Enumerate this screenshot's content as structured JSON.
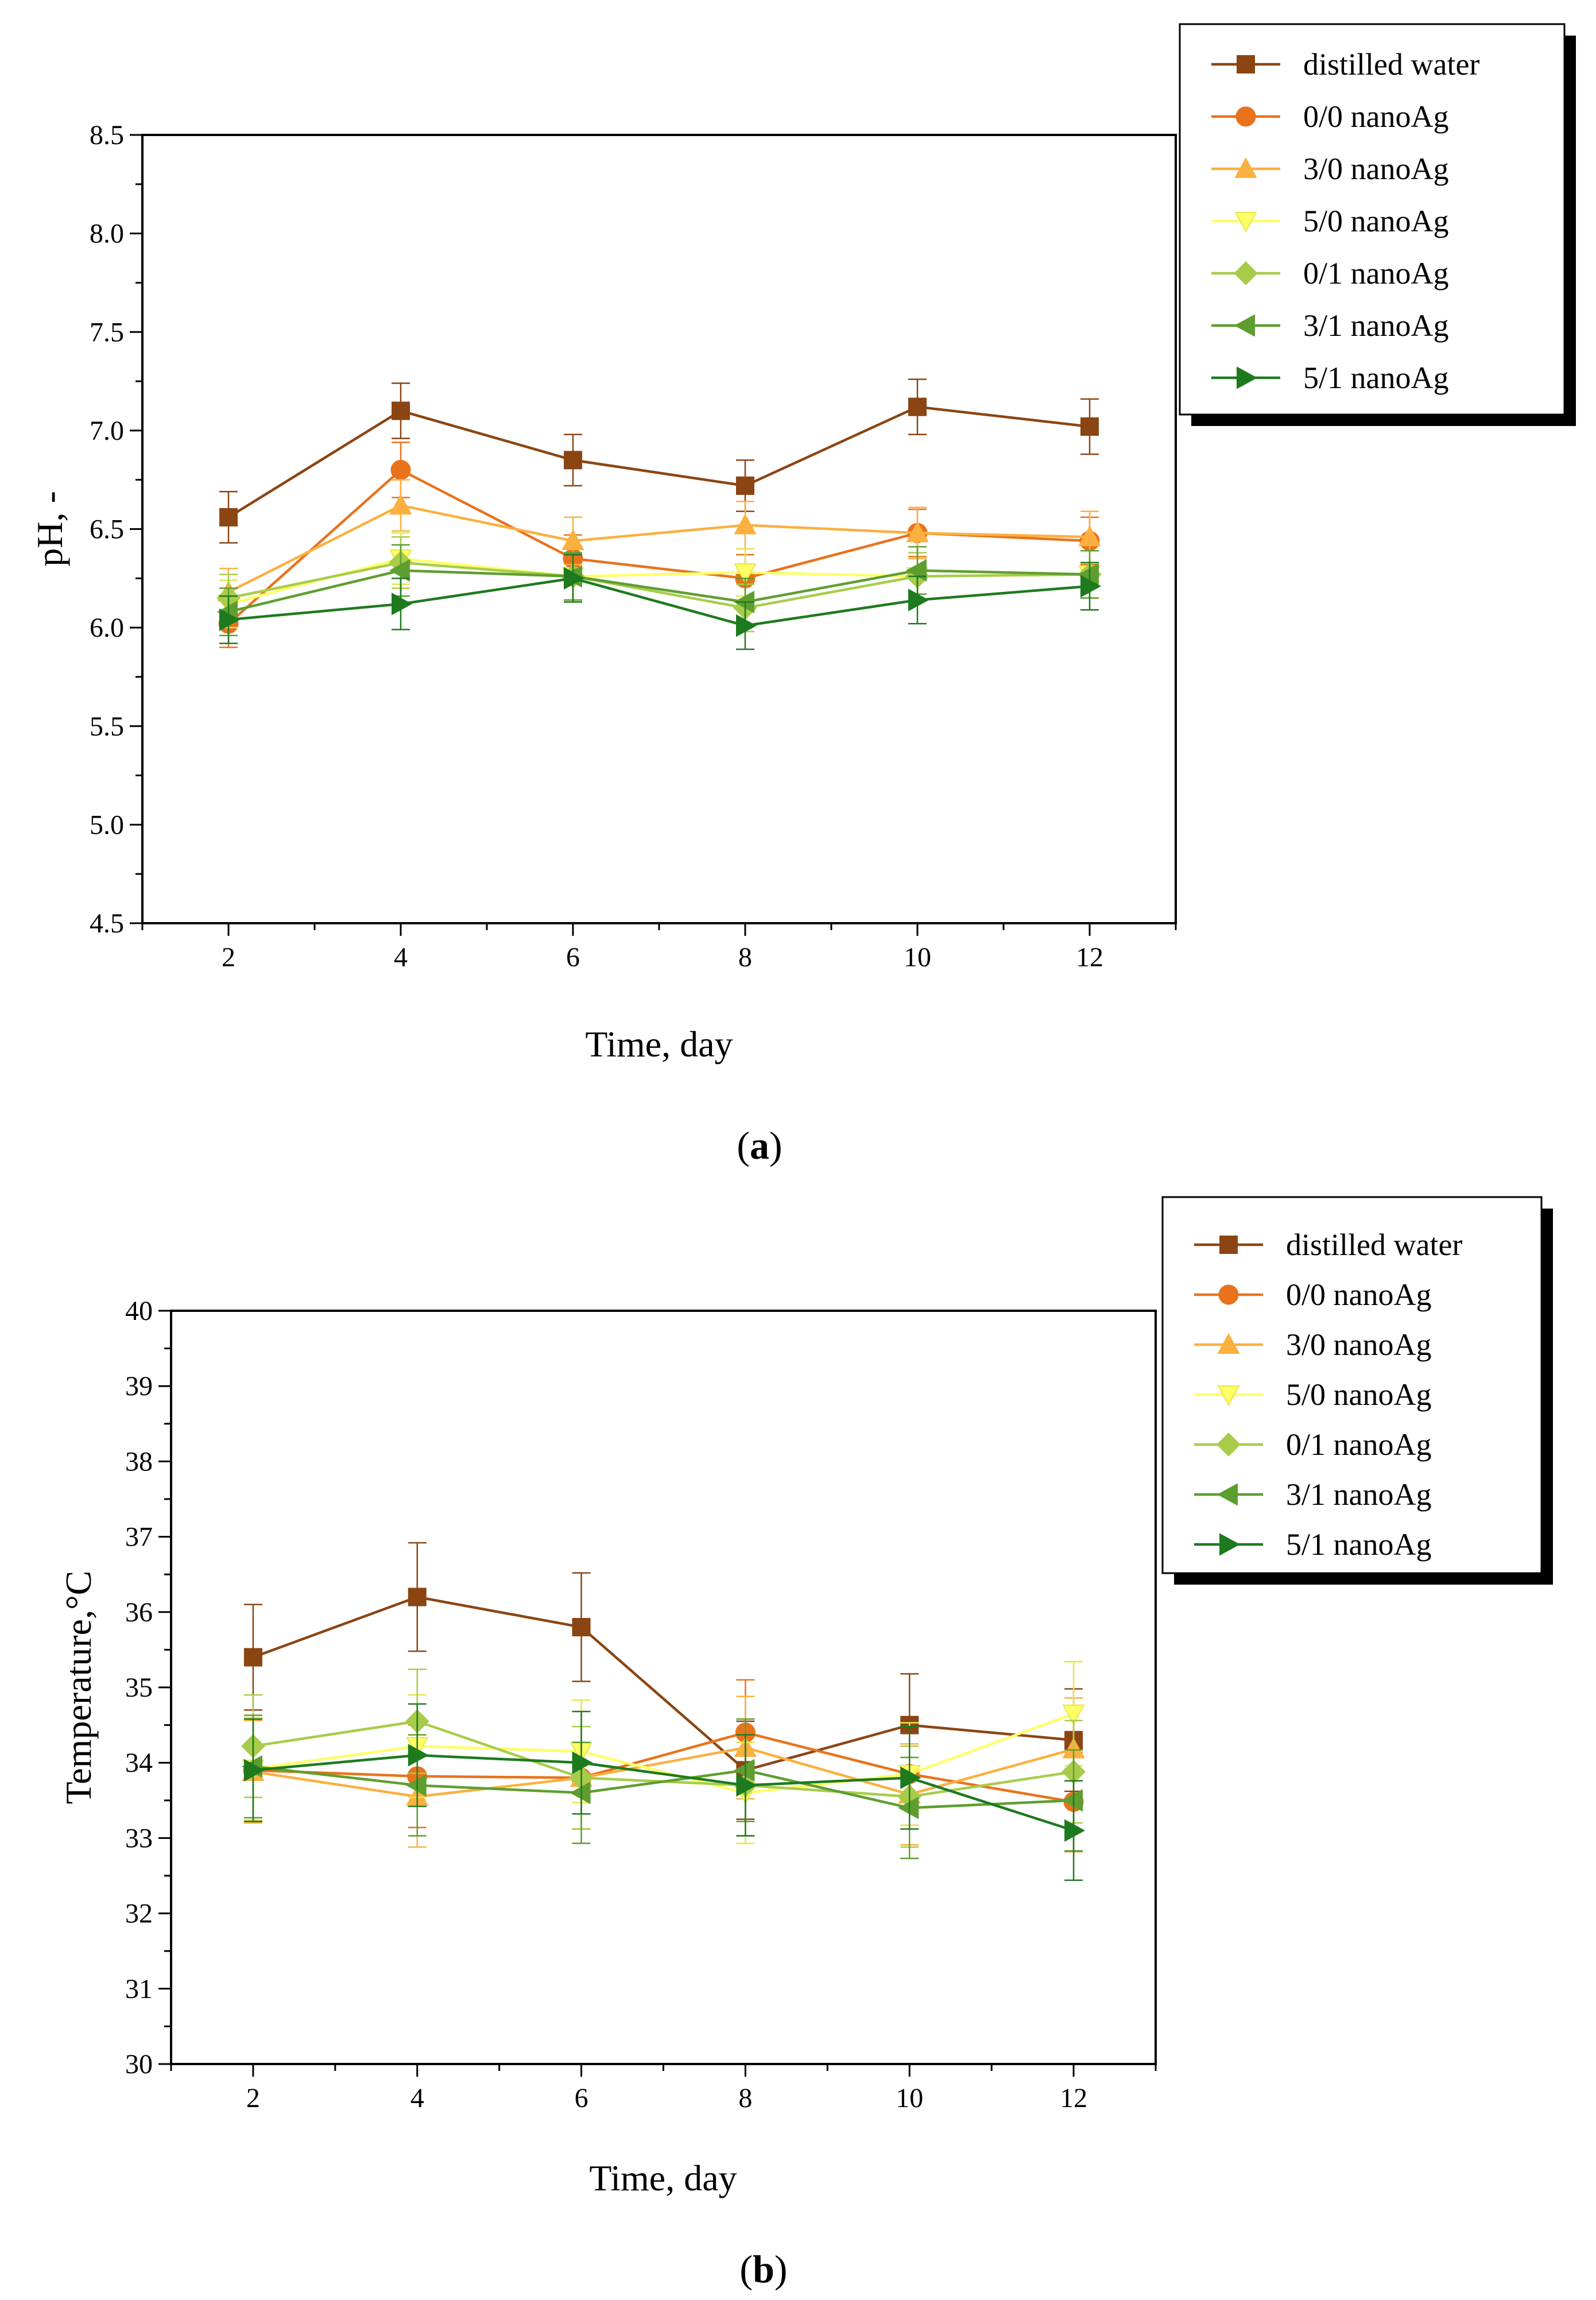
{
  "chart_data": [
    {
      "type": "line",
      "panel_label": "a",
      "xlabel": "Time, day",
      "ylabel": "pH, -",
      "xlim": [
        1,
        13
      ],
      "ylim": [
        4.5,
        8.5
      ],
      "x_ticks": [
        2,
        4,
        6,
        8,
        10,
        12
      ],
      "x_tick_labels": [
        "2",
        "4",
        "6",
        "8",
        "10",
        "12"
      ],
      "y_ticks": [
        4.5,
        5.0,
        5.5,
        6.0,
        6.5,
        7.0,
        7.5,
        8.0,
        8.5
      ],
      "y_tick_labels": [
        "4.5",
        "5.0",
        "5.5",
        "6.0",
        "6.5",
        "7.0",
        "7.5",
        "8.0",
        "8.5"
      ],
      "legend_position": "top-right outside",
      "x": [
        2,
        4,
        6,
        8,
        10,
        12
      ],
      "series": [
        {
          "name": "distilled water",
          "color": "#8B4513",
          "marker": "square",
          "values": [
            6.56,
            7.1,
            6.85,
            6.72,
            7.12,
            7.02
          ],
          "errors": [
            0.13,
            0.14,
            0.13,
            0.13,
            0.14,
            0.14
          ]
        },
        {
          "name": "0/0 nanoAg",
          "color": "#E8731C",
          "marker": "circle",
          "values": [
            6.02,
            6.8,
            6.35,
            6.25,
            6.48,
            6.44
          ],
          "errors": [
            0.12,
            0.14,
            0.12,
            0.12,
            0.12,
            0.12
          ]
        },
        {
          "name": "3/0 nanoAg",
          "color": "#FBB040",
          "marker": "triangle-up",
          "values": [
            6.18,
            6.62,
            6.44,
            6.52,
            6.48,
            6.46
          ],
          "errors": [
            0.12,
            0.13,
            0.12,
            0.12,
            0.13,
            0.13
          ]
        },
        {
          "name": "5/0 nanoAg",
          "color": "#FFFF66",
          "marker": "triangle-down",
          "values": [
            6.12,
            6.35,
            6.26,
            6.28,
            6.26,
            6.27
          ],
          "errors": [
            0.12,
            0.13,
            0.12,
            0.12,
            0.12,
            0.12
          ]
        },
        {
          "name": "0/1 nanoAg",
          "color": "#A8CC4A",
          "marker": "diamond",
          "values": [
            6.15,
            6.33,
            6.26,
            6.1,
            6.26,
            6.27
          ],
          "errors": [
            0.12,
            0.13,
            0.12,
            0.12,
            0.12,
            0.12
          ]
        },
        {
          "name": "3/1 nanoAg",
          "color": "#5E9E30",
          "marker": "triangle-left",
          "values": [
            6.08,
            6.29,
            6.26,
            6.13,
            6.29,
            6.27
          ],
          "errors": [
            0.12,
            0.13,
            0.12,
            0.12,
            0.12,
            0.12
          ]
        },
        {
          "name": "5/1 nanoAg",
          "color": "#1E7A1E",
          "marker": "triangle-right",
          "values": [
            6.04,
            6.12,
            6.25,
            6.01,
            6.14,
            6.21
          ],
          "errors": [
            0.12,
            0.13,
            0.12,
            0.12,
            0.12,
            0.12
          ]
        }
      ]
    },
    {
      "type": "line",
      "panel_label": "b",
      "xlabel": "Time, day",
      "ylabel": "Temperature,°C",
      "xlim": [
        1,
        13
      ],
      "ylim": [
        30,
        40
      ],
      "x_ticks": [
        2,
        4,
        6,
        8,
        10,
        12
      ],
      "x_tick_labels": [
        "2",
        "4",
        "6",
        "8",
        "10",
        "12"
      ],
      "y_ticks": [
        30,
        31,
        32,
        33,
        34,
        35,
        36,
        37,
        38,
        39,
        40
      ],
      "y_tick_labels": [
        "30",
        "31",
        "32",
        "33",
        "34",
        "35",
        "36",
        "37",
        "38",
        "39",
        "40"
      ],
      "legend_position": "top-right outside",
      "x": [
        2,
        4,
        6,
        8,
        10,
        12
      ],
      "series": [
        {
          "name": "distilled water",
          "color": "#8B4513",
          "marker": "square",
          "values": [
            35.4,
            36.2,
            35.8,
            33.9,
            34.5,
            34.3
          ],
          "errors": [
            0.7,
            0.72,
            0.72,
            0.65,
            0.68,
            0.68
          ]
        },
        {
          "name": "0/0 nanoAg",
          "color": "#E8731C",
          "marker": "circle",
          "values": [
            33.9,
            33.82,
            33.8,
            34.4,
            33.85,
            33.48
          ],
          "errors": [
            0.68,
            0.68,
            0.68,
            0.7,
            0.68,
            0.66
          ]
        },
        {
          "name": "3/0 nanoAg",
          "color": "#FBB040",
          "marker": "triangle-up",
          "values": [
            33.88,
            33.55,
            33.8,
            34.2,
            33.58,
            34.18
          ],
          "errors": [
            0.68,
            0.67,
            0.68,
            0.68,
            0.67,
            0.68
          ]
        },
        {
          "name": "5/0 nanoAg",
          "color": "#FFFF66",
          "marker": "triangle-down",
          "values": [
            33.92,
            34.22,
            34.15,
            33.6,
            33.85,
            34.65
          ],
          "errors": [
            0.68,
            0.68,
            0.68,
            0.67,
            0.68,
            0.69
          ]
        },
        {
          "name": "0/1 nanoAg",
          "color": "#A8CC4A",
          "marker": "diamond",
          "values": [
            34.22,
            34.55,
            33.8,
            33.7,
            33.55,
            33.88
          ],
          "errors": [
            0.68,
            0.69,
            0.68,
            0.67,
            0.67,
            0.68
          ]
        },
        {
          "name": "3/1 nanoAg",
          "color": "#5E9E30",
          "marker": "triangle-left",
          "values": [
            33.95,
            33.7,
            33.6,
            33.9,
            33.4,
            33.5
          ],
          "errors": [
            0.68,
            0.67,
            0.67,
            0.68,
            0.67,
            0.67
          ]
        },
        {
          "name": "5/1 nanoAg",
          "color": "#1E7A1E",
          "marker": "triangle-right",
          "values": [
            33.9,
            34.1,
            34.0,
            33.7,
            33.8,
            33.1
          ],
          "errors": [
            0.68,
            0.68,
            0.68,
            0.67,
            0.68,
            0.66
          ]
        }
      ]
    }
  ]
}
